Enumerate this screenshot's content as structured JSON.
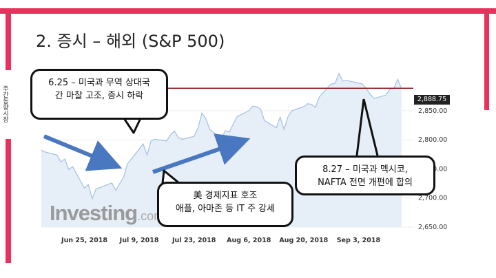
{
  "slide": {
    "title": "2. 증시 – 해외 (S&P 500)",
    "vertical_label": "주간동향시장",
    "accent_color": "#e8325d"
  },
  "callouts": {
    "c1_line1": "6.25 – 미국과 무역 상대국",
    "c1_line2": "간 마찰 고조, 증시 하락",
    "c2_line1": "美 경제지표 호조",
    "c2_line2": "애플, 아마존 등 IT 주 강세",
    "c3_line1": "8.27 – 미국과 멕시코,",
    "c3_line2": "NAFTA 전면 개편에 합의"
  },
  "logo": {
    "brand": "Investing",
    "domain": ".com"
  },
  "chart_data": {
    "type": "area",
    "current_price_label": "2,888.75",
    "x_ticks": [
      "Jun 25, 2018",
      "Jul 9, 2018",
      "Jul 23, 2018",
      "Aug 6, 2018",
      "Aug 20, 2018",
      "Sep 3, 2018"
    ],
    "y_ticks": [
      "2,650.00",
      "2,700.00",
      "2,750.00",
      "2,800.00",
      "2,850.00"
    ],
    "ylim": [
      2650,
      2915
    ],
    "x_range": [
      "2018-06-14",
      "2018-09-17"
    ],
    "reference_level": 2888.75,
    "series": [
      {
        "values": [
          [
            "2018-06-14",
            2782
          ],
          [
            "2018-06-15",
            2779
          ],
          [
            "2018-06-18",
            2774
          ],
          [
            "2018-06-19",
            2762
          ],
          [
            "2018-06-20",
            2767
          ],
          [
            "2018-06-21",
            2749
          ],
          [
            "2018-06-22",
            2754
          ],
          [
            "2018-06-25",
            2717
          ],
          [
            "2018-06-26",
            2723
          ],
          [
            "2018-06-27",
            2699
          ],
          [
            "2018-06-28",
            2716
          ],
          [
            "2018-06-29",
            2718
          ],
          [
            "2018-07-02",
            2726
          ],
          [
            "2018-07-03",
            2713
          ],
          [
            "2018-07-05",
            2736
          ],
          [
            "2018-07-06",
            2759
          ],
          [
            "2018-07-09",
            2784
          ],
          [
            "2018-07-10",
            2793
          ],
          [
            "2018-07-11",
            2774
          ],
          [
            "2018-07-12",
            2798
          ],
          [
            "2018-07-13",
            2801
          ],
          [
            "2018-07-16",
            2798
          ],
          [
            "2018-07-17",
            2809
          ],
          [
            "2018-07-18",
            2815
          ],
          [
            "2018-07-19",
            2804
          ],
          [
            "2018-07-20",
            2801
          ],
          [
            "2018-07-23",
            2806
          ],
          [
            "2018-07-24",
            2820
          ],
          [
            "2018-07-25",
            2846
          ],
          [
            "2018-07-26",
            2837
          ],
          [
            "2018-07-27",
            2818
          ],
          [
            "2018-07-30",
            2802
          ],
          [
            "2018-07-31",
            2816
          ],
          [
            "2018-08-01",
            2813
          ],
          [
            "2018-08-02",
            2827
          ],
          [
            "2018-08-03",
            2840
          ],
          [
            "2018-08-06",
            2850
          ],
          [
            "2018-08-07",
            2858
          ],
          [
            "2018-08-08",
            2857
          ],
          [
            "2018-08-09",
            2853
          ],
          [
            "2018-08-10",
            2833
          ],
          [
            "2018-08-13",
            2821
          ],
          [
            "2018-08-14",
            2839
          ],
          [
            "2018-08-15",
            2818
          ],
          [
            "2018-08-16",
            2840
          ],
          [
            "2018-08-17",
            2850
          ],
          [
            "2018-08-20",
            2857
          ],
          [
            "2018-08-21",
            2862
          ],
          [
            "2018-08-22",
            2861
          ],
          [
            "2018-08-23",
            2856
          ],
          [
            "2018-08-24",
            2874
          ],
          [
            "2018-08-27",
            2896
          ],
          [
            "2018-08-28",
            2897
          ],
          [
            "2018-08-29",
            2914
          ],
          [
            "2018-08-30",
            2901
          ],
          [
            "2018-08-31",
            2902
          ],
          [
            "2018-09-04",
            2896
          ],
          [
            "2018-09-05",
            2888
          ],
          [
            "2018-09-06",
            2878
          ],
          [
            "2018-09-07",
            2871
          ],
          [
            "2018-09-10",
            2877
          ],
          [
            "2018-09-11",
            2887
          ],
          [
            "2018-09-12",
            2888
          ],
          [
            "2018-09-13",
            2904
          ],
          [
            "2018-09-14",
            2888
          ]
        ]
      }
    ]
  }
}
